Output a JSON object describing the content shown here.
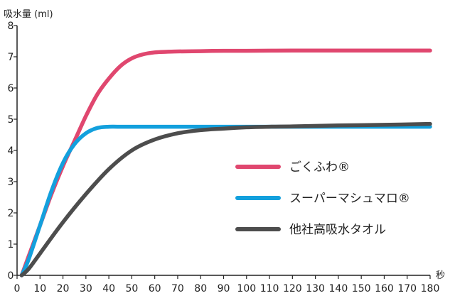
{
  "chart_data": {
    "type": "line",
    "ylabel": "吸水量 (ml)",
    "xlabel": "秒",
    "xlim": [
      0,
      180
    ],
    "ylim": [
      0,
      8
    ],
    "x_ticks": [
      0,
      10,
      20,
      30,
      40,
      50,
      60,
      70,
      80,
      90,
      100,
      110,
      120,
      130,
      140,
      150,
      160,
      170,
      180
    ],
    "y_ticks": [
      0,
      1,
      2,
      3,
      4,
      5,
      6,
      7,
      8
    ],
    "grid": false,
    "legend_position": "right",
    "series": [
      {
        "name": "ごくふわ®",
        "color": "#e0476f",
        "x": [
          2,
          5,
          10,
          15,
          20,
          25,
          30,
          35,
          40,
          45,
          50,
          55,
          60,
          65,
          70,
          80,
          90,
          100,
          120,
          140,
          160,
          180
        ],
        "y": [
          0,
          0.6,
          1.6,
          2.6,
          3.5,
          4.3,
          5.1,
          5.8,
          6.3,
          6.7,
          6.95,
          7.08,
          7.14,
          7.16,
          7.17,
          7.18,
          7.19,
          7.19,
          7.2,
          7.2,
          7.2,
          7.2
        ]
      },
      {
        "name": "スーパーマシュマロ®",
        "color": "#13a0dd",
        "x": [
          2,
          5,
          10,
          15,
          20,
          25,
          30,
          35,
          40,
          45,
          60,
          80,
          100,
          120,
          140,
          160,
          180
        ],
        "y": [
          0,
          0.5,
          1.6,
          2.7,
          3.6,
          4.2,
          4.55,
          4.72,
          4.76,
          4.76,
          4.76,
          4.76,
          4.76,
          4.76,
          4.76,
          4.76,
          4.76
        ]
      },
      {
        "name": "他社高吸水タオル",
        "color": "#4d4d4d",
        "x": [
          2,
          5,
          10,
          20,
          30,
          40,
          50,
          60,
          70,
          80,
          90,
          100,
          110,
          120,
          140,
          160,
          180
        ],
        "y": [
          0,
          0.2,
          0.7,
          1.7,
          2.6,
          3.4,
          4.0,
          4.35,
          4.55,
          4.65,
          4.7,
          4.74,
          4.76,
          4.77,
          4.8,
          4.82,
          4.85
        ]
      }
    ]
  }
}
